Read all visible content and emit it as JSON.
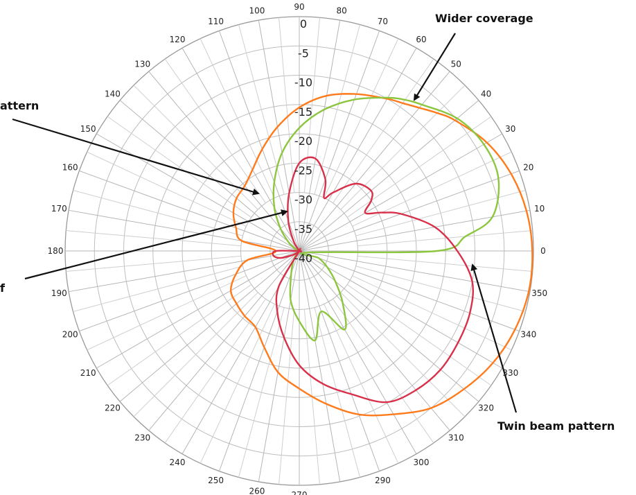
{
  "chart_data": {
    "type": "polar-line",
    "title": "",
    "radial_axis": {
      "min": -40,
      "max": 0,
      "ticks": [
        0,
        -5,
        -10,
        -15,
        -20,
        -25,
        -30,
        -35,
        -40
      ]
    },
    "angle_ticks_deg": [
      0,
      10,
      20,
      30,
      40,
      50,
      60,
      70,
      80,
      90,
      100,
      110,
      120,
      130,
      140,
      150,
      160,
      170,
      180,
      190,
      200,
      210,
      220,
      230,
      240,
      250,
      260,
      270,
      290,
      300,
      310,
      320,
      330,
      340,
      350
    ],
    "grid": true,
    "series": [
      {
        "color": "#ff7a1a",
        "angles": [
          0,
          10,
          20,
          30,
          40,
          45,
          50,
          55,
          60,
          70,
          80,
          90,
          100,
          110,
          120,
          130,
          140,
          150,
          160,
          170,
          180,
          190,
          200,
          210,
          220,
          230,
          240,
          250,
          260,
          270,
          280,
          290,
          300,
          310,
          320,
          330,
          340,
          350
        ],
        "values": [
          -0.2,
          -0.6,
          -1.5,
          -3.0,
          -5.3,
          -6.7,
          -8.1,
          -9.2,
          -10.0,
          -11.5,
          -13.1,
          -15.5,
          -18.5,
          -21.5,
          -24.0,
          -25.5,
          -26.0,
          -27.0,
          -28.5,
          -30.0,
          -36.0,
          -31.0,
          -28.5,
          -26.5,
          -26.0,
          -25.5,
          -25.0,
          -22.5,
          -19.0,
          -16.5,
          -13.5,
          -10.3,
          -7.8,
          -5.0,
          -3.3,
          -1.8,
          -0.8,
          -0.2
        ]
      },
      {
        "color": "#8cc63f",
        "angles": [
          0,
          5,
          10,
          20,
          30,
          40,
          50,
          55,
          60,
          70,
          80,
          90,
          100,
          110,
          120,
          130,
          140,
          150,
          160,
          180,
          200,
          220,
          240,
          250,
          260,
          270,
          280,
          290,
          300,
          310,
          320,
          330,
          340,
          350
        ],
        "values": [
          -16.5,
          -11.5,
          -6.5,
          -3.8,
          -3.6,
          -4.8,
          -7.4,
          -8.5,
          -9.8,
          -12.5,
          -15.5,
          -19.0,
          -23.0,
          -27.5,
          -31.5,
          -35.0,
          -37.5,
          -39.0,
          -40.0,
          -40.0,
          -40.0,
          -39.5,
          -38.0,
          -36.0,
          -31.5,
          -28.0,
          -24.5,
          -29.0,
          -24.5,
          -28.5,
          -32.0,
          -34.5,
          -36.5,
          -38.5
        ]
      },
      {
        "color": "#d9304a",
        "angles": [
          0,
          10,
          20,
          25,
          30,
          35,
          40,
          50,
          60,
          65,
          70,
          80,
          90,
          100,
          110,
          120,
          140,
          160,
          180,
          190,
          200,
          210,
          220,
          230,
          240,
          250,
          260,
          270,
          280,
          290,
          300,
          310,
          320,
          330,
          340,
          350
        ],
        "values": [
          -13.0,
          -16.5,
          -21.5,
          -24.5,
          -27.0,
          -25.0,
          -24.0,
          -25.0,
          -28.5,
          -30.0,
          -27.0,
          -24.0,
          -25.0,
          -30.0,
          -34.5,
          -38.0,
          -40.0,
          -40.0,
          -36.0,
          -35.5,
          -36.5,
          -38.5,
          -39.5,
          -40.0,
          -33.0,
          -29.0,
          -25.0,
          -20.5,
          -17.0,
          -14.0,
          -10.2,
          -9.0,
          -8.5,
          -8.7,
          -9.0,
          -10.0
        ]
      }
    ],
    "callouts": [
      {
        "text": "Wider coverage"
      },
      {
        "text": "attern"
      },
      {
        "text": "f"
      },
      {
        "text": "Twin beam pattern"
      }
    ]
  }
}
